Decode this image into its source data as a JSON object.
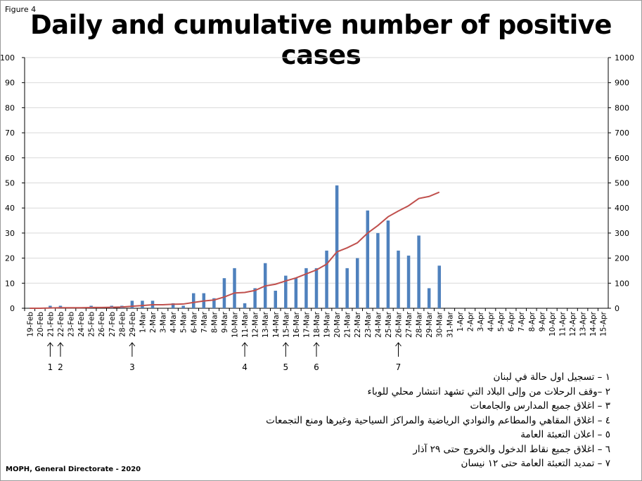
{
  "figure_label": "Figure 4",
  "footer": "MOPH, General Directorate - 2020",
  "colors": {
    "bar": "#4f81bd",
    "line": "#c0504d",
    "grid": "#d9d9d9",
    "axis": "#000000"
  },
  "chart_data": {
    "type": "bar",
    "title": "Daily and cumulative number of positive cases",
    "categories": [
      "19-Feb",
      "20-Feb",
      "21-Feb",
      "22-Feb",
      "23-Feb",
      "24-Feb",
      "25-Feb",
      "26-Feb",
      "27-Feb",
      "28-Feb",
      "29-Feb",
      "1-Mar",
      "2-Mar",
      "3-Mar",
      "4-Mar",
      "5-Mar",
      "6-Mar",
      "7-Mar",
      "8-Mar",
      "9-Mar",
      "10-Mar",
      "11-Mar",
      "12-Mar",
      "13-Mar",
      "14-Mar",
      "15-Mar",
      "16-Mar",
      "17-Mar",
      "18-Mar",
      "19-Mar",
      "20-Mar",
      "21-Mar",
      "22-Mar",
      "23-Mar",
      "24-Mar",
      "25-Mar",
      "26-Mar",
      "27-Mar",
      "28-Mar",
      "29-Mar",
      "30-Mar",
      "31-Mar",
      "1-Apr",
      "2-Apr",
      "3-Apr",
      "4-Apr",
      "5-Apr",
      "6-Apr",
      "7-Apr",
      "8-Apr",
      "9-Apr",
      "10-Apr",
      "11-Apr",
      "12-Apr",
      "13-Apr",
      "14-Apr",
      "15-Apr"
    ],
    "series": [
      {
        "type": "bar",
        "axis": "left",
        "values": [
          0,
          0,
          1,
          1,
          0,
          0,
          1,
          0,
          1,
          1,
          3,
          3,
          3,
          0,
          2,
          1,
          6,
          6,
          4,
          12,
          16,
          2,
          8,
          18,
          7,
          13,
          12,
          16,
          16,
          23,
          49,
          16,
          20,
          39,
          30,
          35,
          23,
          21,
          29,
          8,
          17,
          null,
          null,
          null,
          null,
          null,
          null,
          null,
          null,
          null,
          null,
          null,
          null,
          null,
          null,
          null,
          null
        ]
      },
      {
        "type": "line",
        "axis": "right",
        "values": [
          0,
          0,
          1,
          2,
          2,
          2,
          3,
          3,
          4,
          5,
          8,
          11,
          14,
          14,
          16,
          17,
          23,
          29,
          33,
          45,
          61,
          63,
          71,
          89,
          96,
          109,
          121,
          137,
          153,
          176,
          225,
          241,
          261,
          300,
          330,
          365,
          388,
          409,
          438,
          446,
          463,
          null,
          null,
          null,
          null,
          null,
          null,
          null,
          null,
          null,
          null,
          null,
          null,
          null,
          null,
          null,
          null
        ]
      }
    ],
    "ylim": [
      0,
      100
    ],
    "y2lim": [
      0,
      1000
    ],
    "yticks": [
      0,
      10,
      20,
      30,
      40,
      50,
      60,
      70,
      80,
      90,
      100
    ],
    "y2ticks": [
      0,
      100,
      200,
      300,
      400,
      500,
      600,
      700,
      800,
      900,
      1000
    ],
    "grid": true,
    "annotations": [
      {
        "label": "1",
        "x": "21-Feb"
      },
      {
        "label": "2",
        "x": "22-Feb"
      },
      {
        "label": "3",
        "x": "29-Feb"
      },
      {
        "label": "4",
        "x": "11-Mar"
      },
      {
        "label": "5",
        "x": "15-Mar"
      },
      {
        "label": "6",
        "x": "18-Mar"
      },
      {
        "label": "7",
        "x": "26-Mar"
      }
    ]
  },
  "legend_items": [
    "١ – تسجيل اول حالة في لبنان",
    "٢ –وقف الرحلات من وإلى البلاد التي تشهد انتشار محلي للوباء",
    "٣ – اغلاق جميع المدارس والجامعات",
    "٤ – اغلاق المقاهي والمطاعم والنوادي الرياضية والمراكز السياحية وغيرها ومنع التجمعات",
    "٥ – اعلان التعبئة العامة",
    "٦ – اغلاق جميع نقاط الدخول والخروج حتى ٢٩ آذار",
    "٧ – تمديد التعبئة العامة حتى ١٢ نيسان"
  ]
}
